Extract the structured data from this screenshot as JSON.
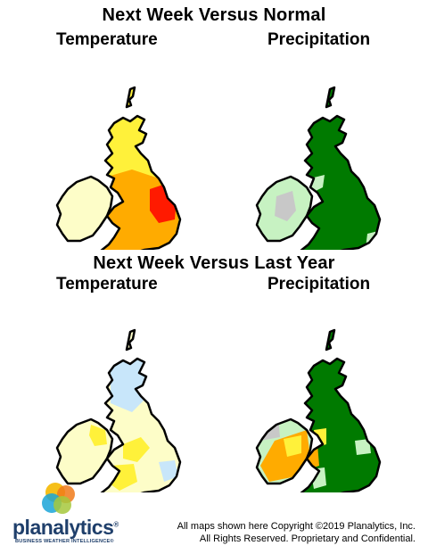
{
  "sections": {
    "top": {
      "title": "Next Week Versus Normal",
      "left_label": "Temperature",
      "right_label": "Precipitation"
    },
    "bottom": {
      "title": "Next Week Versus Last Year",
      "left_label": "Temperature",
      "right_label": "Precipitation"
    }
  },
  "logo": {
    "name": "Planalytics",
    "wordmark": "planalytics",
    "registered": "®",
    "tagline": "BUSINESS WEATHER INTELLIGENCE®"
  },
  "copyright": {
    "line1": "All maps shown here Copyright ©2019 Planalytics, Inc.",
    "line2": "All Rights Reserved. Proprietary and Confidential."
  },
  "colors": {
    "outline": "#000000",
    "pale_yellow": "#fdfdc8",
    "yellow": "#fff13a",
    "orange": "#ffab00",
    "red": "#ff1a00",
    "light_blue": "#c8e6fa",
    "light_green": "#c7f2c2",
    "dark_green": "#007a00",
    "gray": "#c8c8c8"
  }
}
